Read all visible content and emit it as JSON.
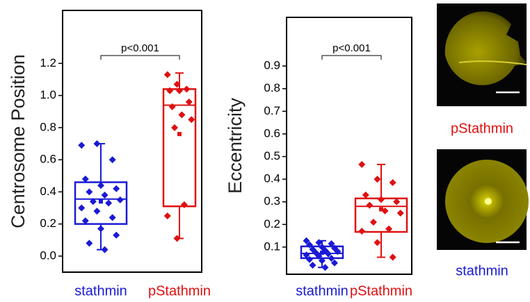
{
  "chart_data": [
    {
      "type": "box",
      "ylabel": "Centrosome Position",
      "annotation": "p<0.001",
      "categories": [
        "stathmin",
        "pStathmin"
      ],
      "colors": [
        "#1a1ad6",
        "#e01010"
      ],
      "ylim": [
        -0.1,
        1.53
      ],
      "yticks": [
        {
          "value": 0,
          "label": "0.0"
        },
        0.2,
        0.4,
        0.6,
        0.8,
        {
          "value": 1,
          "label": "1.0"
        },
        1.2
      ],
      "boxes": [
        {
          "min": 0.04,
          "q1": 0.2,
          "median": 0.355,
          "q3": 0.46,
          "max": 0.7,
          "mean": 0.34,
          "points": [
            0.69,
            0.7,
            0.6,
            0.48,
            0.44,
            0.42,
            0.4,
            0.38,
            0.35,
            0.34,
            0.33,
            0.3,
            0.28,
            0.24,
            0.22,
            0.17,
            0.13,
            0.08,
            0.04
          ]
        },
        {
          "min": 0.11,
          "q1": 0.31,
          "median": 0.94,
          "q3": 1.04,
          "max": 1.14,
          "mean": 0.76,
          "points": [
            1.13,
            1.07,
            1.04,
            1.03,
            1.03,
            0.96,
            0.93,
            0.88,
            0.85,
            0.8,
            0.32,
            0.25,
            0.11
          ]
        }
      ]
    },
    {
      "type": "box",
      "ylabel": "Eccentricity",
      "annotation": "p<0.001",
      "categories": [
        "stathmin",
        "pStathmin"
      ],
      "colors": [
        "#1a1ad6",
        "#e01010"
      ],
      "ylim": [
        -0.02,
        1.115
      ],
      "yticks": [
        0.1,
        0.2,
        0.3,
        0.4,
        0.5,
        0.6,
        0.7,
        0.8,
        0.9
      ],
      "boxes": [
        {
          "min": 0.01,
          "q1": 0.051,
          "median": 0.072,
          "q3": 0.103,
          "max": 0.128,
          "mean": 0.075,
          "points": [
            0.128,
            0.12,
            0.115,
            0.11,
            0.1,
            0.095,
            0.09,
            0.085,
            0.08,
            0.075,
            0.07,
            0.065,
            0.06,
            0.05,
            0.045,
            0.04,
            0.03,
            0.02,
            0.01
          ]
        },
        {
          "min": 0.055,
          "q1": 0.167,
          "median": 0.28,
          "q3": 0.315,
          "max": 0.465,
          "mean": 0.267,
          "points": [
            0.465,
            0.4,
            0.385,
            0.33,
            0.31,
            0.3,
            0.285,
            0.26,
            0.25,
            0.21,
            0.18,
            0.17,
            0.12,
            0.055
          ]
        }
      ]
    }
  ],
  "images": [
    {
      "label": "pStathmin"
    },
    {
      "label": "stathmin"
    }
  ]
}
